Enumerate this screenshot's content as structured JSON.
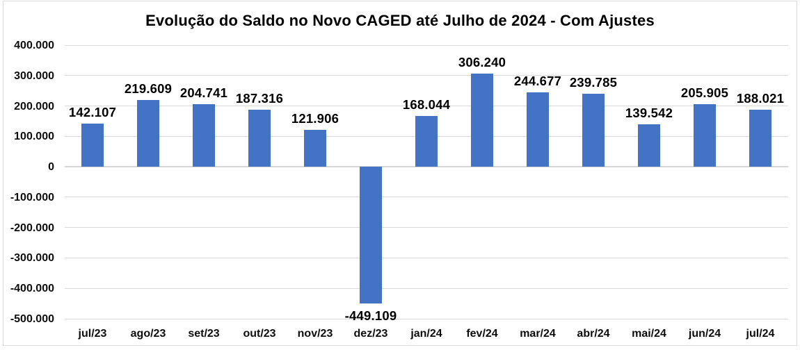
{
  "chart_data": {
    "type": "bar",
    "title": "Evolução do Saldo no Novo CAGED até Julho de 2024 - Com Ajustes",
    "categories": [
      "jul/23",
      "ago/23",
      "set/23",
      "out/23",
      "nov/23",
      "dez/23",
      "jan/24",
      "fev/24",
      "mar/24",
      "abr/24",
      "mai/24",
      "jun/24",
      "jul/24"
    ],
    "values": [
      142107,
      219609,
      204741,
      187316,
      121906,
      -449109,
      168044,
      306240,
      244677,
      239785,
      139542,
      205905,
      188021
    ],
    "data_labels": [
      "142.107",
      "219.609",
      "204.741",
      "187.316",
      "121.906",
      "-449.109",
      "168.044",
      "306.240",
      "244.677",
      "239.785",
      "139.542",
      "205.905",
      "188.021"
    ],
    "xlabel": "",
    "ylabel": "",
    "ylim": [
      -500000,
      400000
    ],
    "ytick_step": 100000,
    "ytick_labels": [
      "400.000",
      "300.000",
      "200.000",
      "100.000",
      "0",
      "-100.000",
      "-200.000",
      "-300.000",
      "-400.000",
      "-500.000"
    ],
    "grid": true,
    "legend": "none",
    "data_label_position": "outside-end",
    "colors": {
      "bar": "#4472c4",
      "gridline": "#d9d9d9",
      "axis_line": "#d6d6d6",
      "text": "#000000",
      "frame_border": "#d9d9d9",
      "background": "#ffffff"
    }
  }
}
